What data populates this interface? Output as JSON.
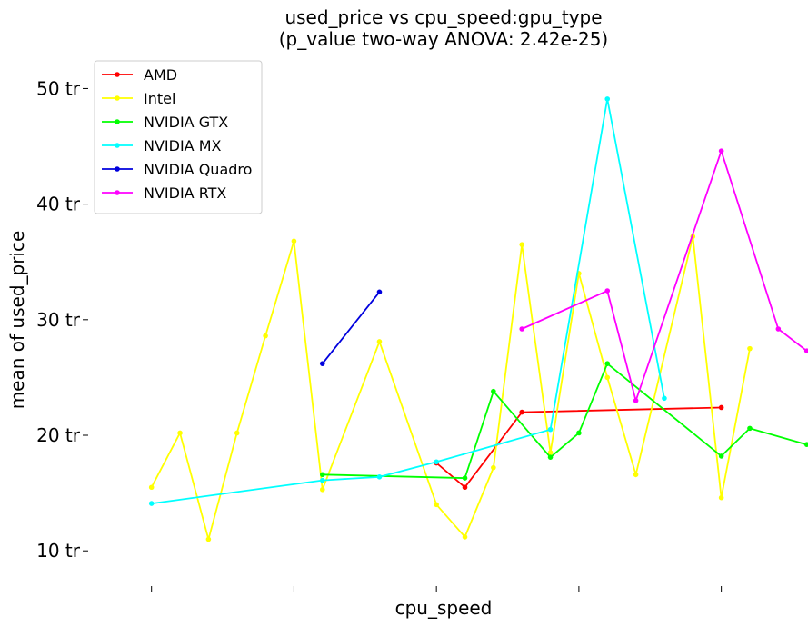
{
  "chart_data": {
    "type": "line",
    "title": "used_price vs cpu_speed:gpu_type",
    "subtitle": "(p_value two-way ANOVA: 2.42e-25)",
    "xlabel": "cpu_speed",
    "ylabel": "mean of used_price",
    "y_unit": "tr",
    "ylim": [
      7.5,
      52
    ],
    "yticks": [
      10,
      20,
      30,
      40,
      50
    ],
    "ytick_labels": [
      "10 tr",
      "20 tr",
      "30 tr",
      "40 tr",
      "50 tr"
    ],
    "xlim": [
      0.8,
      3.25
    ],
    "xticks": [
      1.0,
      1.5,
      2.0,
      2.5,
      3.0
    ],
    "xtick_labels": [
      "",
      "",
      "",
      "",
      ""
    ],
    "grid": false,
    "legend_position": "top-left",
    "series": [
      {
        "name": "AMD",
        "color": "#ff0000",
        "points": [
          [
            2.0,
            17.6
          ],
          [
            2.1,
            15.5
          ],
          [
            2.3,
            22.0
          ],
          [
            3.0,
            22.4
          ]
        ]
      },
      {
        "name": "Intel",
        "color": "#ffff00",
        "points": [
          [
            1.0,
            15.5
          ],
          [
            1.1,
            20.2
          ],
          [
            1.2,
            11.0
          ],
          [
            1.3,
            20.2
          ],
          [
            1.4,
            28.6
          ],
          [
            1.5,
            36.8
          ],
          [
            1.6,
            15.3
          ],
          [
            1.8,
            28.1
          ],
          [
            2.0,
            14.0
          ],
          [
            2.1,
            11.2
          ],
          [
            2.2,
            17.2
          ],
          [
            2.3,
            36.5
          ],
          [
            2.4,
            18.5
          ],
          [
            2.5,
            34.0
          ],
          [
            2.6,
            25.0
          ],
          [
            2.7,
            16.6
          ],
          [
            2.9,
            37.2
          ],
          [
            3.0,
            14.6
          ],
          [
            3.1,
            27.5
          ]
        ]
      },
      {
        "name": "NVIDIA GTX",
        "color": "#00ff00",
        "points": [
          [
            1.6,
            16.6
          ],
          [
            2.1,
            16.3
          ],
          [
            2.2,
            23.8
          ],
          [
            2.4,
            18.1
          ],
          [
            2.5,
            20.2
          ],
          [
            2.6,
            26.2
          ],
          [
            3.0,
            18.2
          ],
          [
            3.1,
            20.6
          ],
          [
            3.3,
            19.2
          ]
        ]
      },
      {
        "name": "NVIDIA MX",
        "color": "#00ffff",
        "points": [
          [
            1.0,
            14.1
          ],
          [
            1.6,
            16.1
          ],
          [
            1.8,
            16.4
          ],
          [
            2.0,
            17.7
          ],
          [
            2.4,
            20.5
          ],
          [
            2.6,
            49.1
          ],
          [
            2.8,
            23.2
          ]
        ]
      },
      {
        "name": "NVIDIA Quadro",
        "color": "#0000dd",
        "points": [
          [
            1.6,
            26.2
          ],
          [
            1.8,
            32.4
          ]
        ]
      },
      {
        "name": "NVIDIA RTX",
        "color": "#ff00ff",
        "points": [
          [
            2.3,
            29.2
          ],
          [
            2.6,
            32.5
          ],
          [
            2.7,
            23.0
          ],
          [
            3.0,
            44.6
          ],
          [
            3.2,
            29.2
          ],
          [
            3.3,
            27.3
          ]
        ]
      }
    ]
  }
}
